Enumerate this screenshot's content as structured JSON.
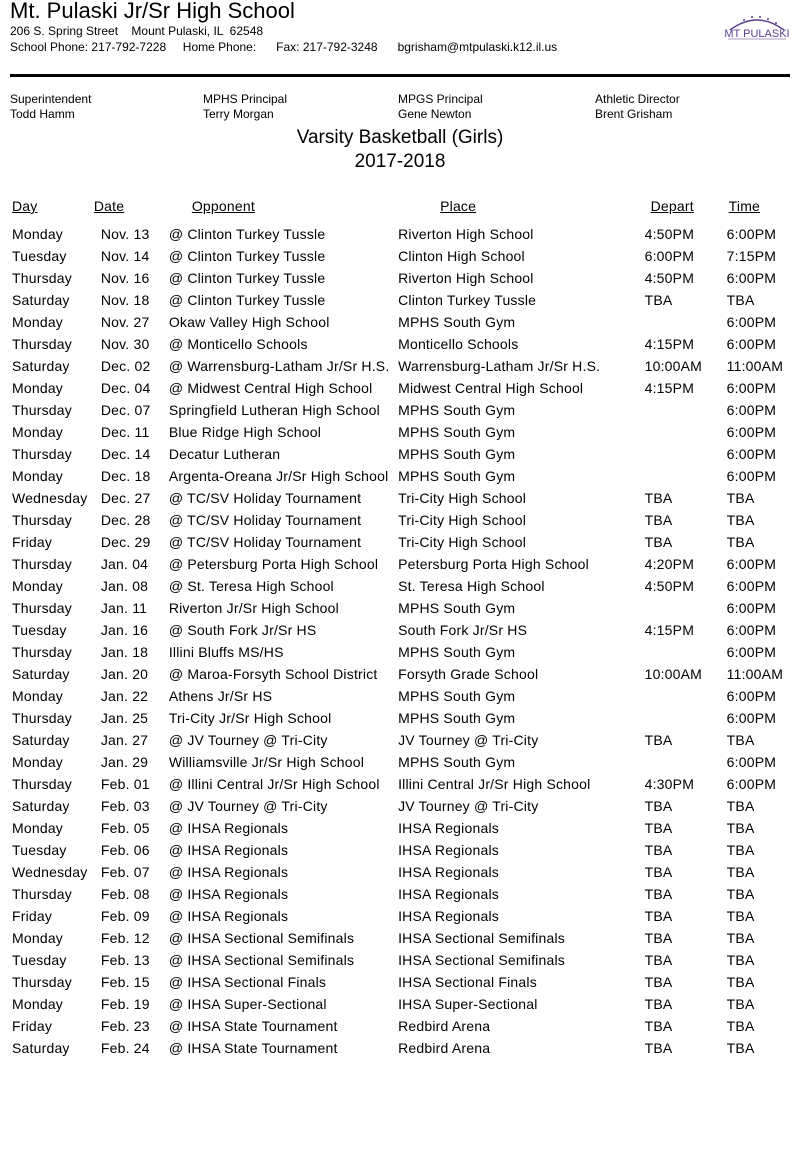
{
  "header": {
    "school": "Mt. Pulaski Jr/Sr High School",
    "address": "206 S. Spring Street    Mount Pulaski, IL  62548",
    "phones": "School Phone: 217-792-7228     Home Phone:      Fax: 217-792-3248      bgrisham@mtpulaski.k12.il.us",
    "logo_text": "MT PULASKI",
    "brand_color": "#5b3f8f"
  },
  "staff": [
    {
      "role": "Superintendent",
      "name": "Todd Hamm"
    },
    {
      "role": "MPHS Principal",
      "name": "Terry Morgan"
    },
    {
      "role": "MPGS Principal",
      "name": "Gene Newton"
    },
    {
      "role": "Athletic Director",
      "name": "Brent Grisham"
    }
  ],
  "doc_title": "Varsity Basketball (Girls)",
  "season": "2017-2018",
  "columns": [
    "Day",
    "Date",
    "Opponent",
    "Place",
    "Depart",
    "Time"
  ],
  "rows": [
    [
      "Monday",
      "Nov. 13",
      "@ Clinton Turkey Tussle",
      "Riverton High School",
      "4:50PM",
      "6:00PM"
    ],
    [
      "Tuesday",
      "Nov. 14",
      "@ Clinton Turkey Tussle",
      "Clinton High School",
      "6:00PM",
      "7:15PM"
    ],
    [
      "Thursday",
      "Nov. 16",
      "@ Clinton Turkey Tussle",
      "Riverton High School",
      "4:50PM",
      "6:00PM"
    ],
    [
      "Saturday",
      "Nov. 18",
      "@ Clinton Turkey Tussle",
      "Clinton Turkey Tussle",
      "TBA",
      "TBA"
    ],
    [
      "Monday",
      "Nov. 27",
      "Okaw Valley High School",
      "MPHS South Gym",
      "",
      "6:00PM"
    ],
    [
      "Thursday",
      "Nov. 30",
      "@ Monticello Schools",
      "Monticello Schools",
      "4:15PM",
      "6:00PM"
    ],
    [
      "Saturday",
      "Dec. 02",
      "@ Warrensburg-Latham Jr/Sr H.S.",
      "Warrensburg-Latham Jr/Sr H.S.",
      "10:00AM",
      "11:00AM"
    ],
    [
      "Monday",
      "Dec. 04",
      "@ Midwest Central High School",
      "Midwest Central High School",
      "4:15PM",
      "6:00PM"
    ],
    [
      "Thursday",
      "Dec. 07",
      "Springfield Lutheran High School",
      "MPHS South Gym",
      "",
      "6:00PM"
    ],
    [
      "Monday",
      "Dec. 11",
      "Blue Ridge High School",
      "MPHS South Gym",
      "",
      "6:00PM"
    ],
    [
      "Thursday",
      "Dec. 14",
      "Decatur Lutheran",
      "MPHS South Gym",
      "",
      "6:00PM"
    ],
    [
      "Monday",
      "Dec. 18",
      "Argenta-Oreana Jr/Sr High School",
      "MPHS South Gym",
      "",
      "6:00PM"
    ],
    [
      "Wednesday",
      "Dec. 27",
      "@ TC/SV Holiday Tournament",
      "Tri-City High School",
      "TBA",
      "TBA"
    ],
    [
      "Thursday",
      "Dec. 28",
      "@ TC/SV Holiday Tournament",
      "Tri-City High School",
      "TBA",
      "TBA"
    ],
    [
      "Friday",
      "Dec. 29",
      "@ TC/SV Holiday Tournament",
      "Tri-City High School",
      "TBA",
      "TBA"
    ],
    [
      "Thursday",
      "Jan. 04",
      "@ Petersburg Porta High School",
      "Petersburg Porta High School",
      "4:20PM",
      "6:00PM"
    ],
    [
      "Monday",
      "Jan. 08",
      "@ St. Teresa High School",
      "St. Teresa High School",
      "4:50PM",
      "6:00PM"
    ],
    [
      "Thursday",
      "Jan. 11",
      "Riverton Jr/Sr High School",
      "MPHS South Gym",
      "",
      "6:00PM"
    ],
    [
      "Tuesday",
      "Jan. 16",
      "@ South Fork Jr/Sr HS",
      "South Fork Jr/Sr HS",
      "4:15PM",
      "6:00PM"
    ],
    [
      "Thursday",
      "Jan. 18",
      "Illini Bluffs MS/HS",
      "MPHS South Gym",
      "",
      "6:00PM"
    ],
    [
      "Saturday",
      "Jan. 20",
      "@ Maroa-Forsyth School District",
      "Forsyth Grade School",
      "10:00AM",
      "11:00AM"
    ],
    [
      "Monday",
      "Jan. 22",
      "Athens Jr/Sr HS",
      "MPHS South Gym",
      "",
      "6:00PM"
    ],
    [
      "Thursday",
      "Jan. 25",
      "Tri-City Jr/Sr High School",
      "MPHS South Gym",
      "",
      "6:00PM"
    ],
    [
      "Saturday",
      "Jan. 27",
      "@ JV Tourney @ Tri-City",
      "JV Tourney @ Tri-City",
      "TBA",
      "TBA"
    ],
    [
      "Monday",
      "Jan. 29",
      "Williamsville Jr/Sr High School",
      "MPHS South Gym",
      "",
      "6:00PM"
    ],
    [
      "Thursday",
      "Feb. 01",
      "@ Illini Central Jr/Sr High School",
      "Illini Central Jr/Sr High School",
      "4:30PM",
      "6:00PM"
    ],
    [
      "Saturday",
      "Feb. 03",
      "@ JV Tourney @ Tri-City",
      "JV Tourney @ Tri-City",
      "TBA",
      "TBA"
    ],
    [
      "Monday",
      "Feb. 05",
      "@ IHSA Regionals",
      "IHSA Regionals",
      "TBA",
      "TBA"
    ],
    [
      "Tuesday",
      "Feb. 06",
      "@ IHSA Regionals",
      "IHSA Regionals",
      "TBA",
      "TBA"
    ],
    [
      "Wednesday",
      "Feb. 07",
      "@ IHSA Regionals",
      "IHSA Regionals",
      "TBA",
      "TBA"
    ],
    [
      "Thursday",
      "Feb. 08",
      "@ IHSA Regionals",
      "IHSA Regionals",
      "TBA",
      "TBA"
    ],
    [
      "Friday",
      "Feb. 09",
      "@ IHSA Regionals",
      "IHSA Regionals",
      "TBA",
      "TBA"
    ],
    [
      "Monday",
      "Feb. 12",
      "@ IHSA Sectional Semifinals",
      "IHSA Sectional Semifinals",
      "TBA",
      "TBA"
    ],
    [
      "Tuesday",
      "Feb. 13",
      "@ IHSA Sectional Semifinals",
      "IHSA Sectional Semifinals",
      "TBA",
      "TBA"
    ],
    [
      "Thursday",
      "Feb. 15",
      "@ IHSA Sectional Finals",
      "IHSA Sectional Finals",
      "TBA",
      "TBA"
    ],
    [
      "Monday",
      "Feb. 19",
      "@ IHSA Super-Sectional",
      "IHSA Super-Sectional",
      "TBA",
      "TBA"
    ],
    [
      "Friday",
      "Feb. 23",
      "@ IHSA State Tournament",
      "Redbird Arena",
      "TBA",
      "TBA"
    ],
    [
      "Saturday",
      "Feb. 24",
      "@ IHSA State Tournament",
      "Redbird Arena",
      "TBA",
      "TBA"
    ]
  ]
}
